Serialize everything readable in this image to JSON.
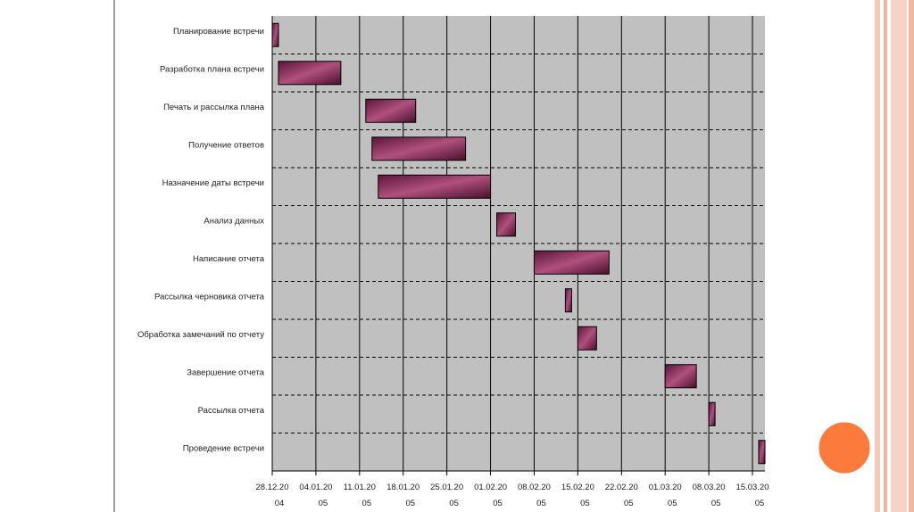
{
  "chart_data": {
    "type": "gantt",
    "categories": [
      "Планирование встречи",
      "Разработка плана встречи",
      "Печать и рассылка плана",
      "Получение ответов",
      "Назначение даты встречи",
      "Анализ данных",
      "Написание отчета",
      "Рассылка черновика отчета",
      "Обработка замечаний по отчету",
      "Завершение отчета",
      "Рассылка отчета",
      "Проведение встречи"
    ],
    "start": [
      "2004-12-28",
      "2004-12-29",
      "2005-01-12",
      "2005-01-13",
      "2005-01-14",
      "2005-02-02",
      "2005-02-08",
      "2005-02-13",
      "2005-02-15",
      "2005-03-01",
      "2005-03-08",
      "2005-03-16"
    ],
    "end": [
      "2004-12-29",
      "2005-01-08",
      "2005-01-20",
      "2005-01-28",
      "2005-02-01",
      "2005-02-05",
      "2005-02-20",
      "2005-02-14",
      "2005-02-18",
      "2005-03-06",
      "2005-03-09",
      "2005-03-17"
    ],
    "color": "#6e1f48",
    "xlim": [
      "2004-12-28",
      "2005-03-17"
    ],
    "xticks": [
      {
        "value": "2004-12-28",
        "label": "28.12.2004"
      },
      {
        "value": "2005-01-04",
        "label": "04.01.2005"
      },
      {
        "value": "2005-01-11",
        "label": "11.01.2005"
      },
      {
        "value": "2005-01-18",
        "label": "18.01.2005"
      },
      {
        "value": "2005-01-25",
        "label": "25.01.2005"
      },
      {
        "value": "2005-02-01",
        "label": "01.02.2005"
      },
      {
        "value": "2005-02-08",
        "label": "08.02.2005"
      },
      {
        "value": "2005-02-15",
        "label": "15.02.2005"
      },
      {
        "value": "2005-02-22",
        "label": "22.02.2005"
      },
      {
        "value": "2005-03-01",
        "label": "01.03.2005"
      },
      {
        "value": "2005-03-08",
        "label": "08.03.2005"
      },
      {
        "value": "2005-03-15",
        "label": "15.03.2005"
      }
    ],
    "grid": true
  }
}
